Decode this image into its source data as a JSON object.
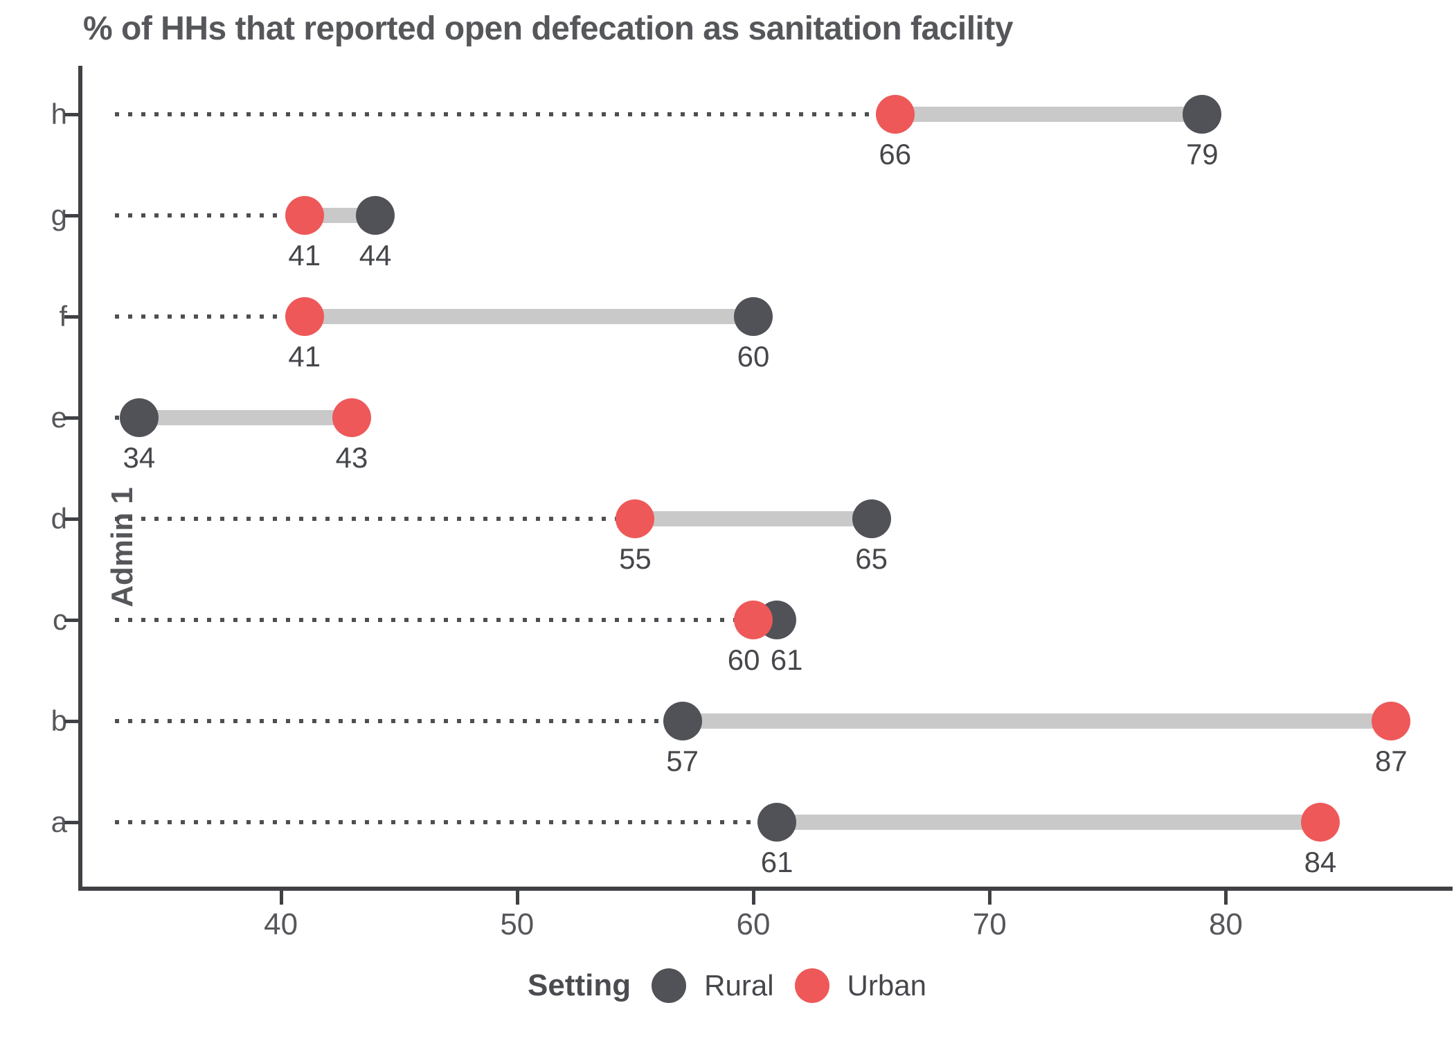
{
  "title": "% of HHs that reported open defecation as sanitation facility",
  "y_axis": {
    "label": "Admin 1"
  },
  "legend": {
    "title": "Setting",
    "items": [
      {
        "label": "Rural",
        "color": "#515257"
      },
      {
        "label": "Urban",
        "color": "#EE5859"
      }
    ]
  },
  "colors": {
    "rural": "#515257",
    "urban": "#EE5859",
    "connector": "#C9C9C9",
    "leader_dots": "#4E4F52",
    "axis_line": "#404144",
    "text": "#56575B"
  },
  "chart_data": {
    "type": "dumbbell",
    "orientation": "horizontal",
    "title": "% of HHs that reported open defecation as sanitation facility",
    "xlabel": "",
    "ylabel": "Admin 1",
    "categories": [
      "h",
      "g",
      "f",
      "e",
      "d",
      "c",
      "b",
      "a"
    ],
    "series": [
      {
        "name": "Rural",
        "color": "#515257",
        "values": [
          79,
          44,
          60,
          34,
          65,
          61,
          57,
          61
        ]
      },
      {
        "name": "Urban",
        "color": "#EE5859",
        "values": [
          66,
          41,
          41,
          43,
          55,
          60,
          87,
          84
        ]
      }
    ],
    "value_labels_shown": true,
    "x_ticks": [
      40,
      50,
      60,
      70,
      80
    ],
    "xlim": [
      31.6,
      89.6
    ],
    "grid": "none",
    "leader_lines": "dotted, from left edge to minimum value of each pair",
    "legend_position": "bottom-center"
  }
}
